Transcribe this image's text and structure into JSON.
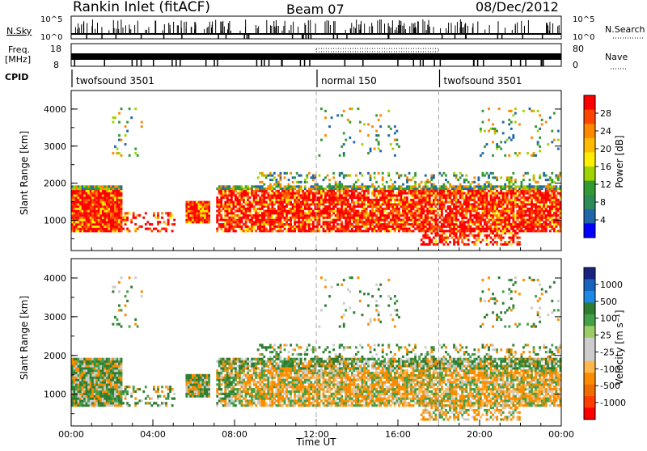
{
  "header": {
    "station": "Rankin Inlet (fitACF)",
    "beam": "Beam 07",
    "date": "08/Dec/2012"
  },
  "strip": {
    "nsky_label": "N.Sky",
    "nsky_ticks": [
      "10^5",
      "10^0"
    ],
    "nsky_ticks_right": [
      "10^5",
      "10^0"
    ],
    "nsearch_label": "N.Search",
    "freq_label": "Freq.",
    "freq_unit": "[MHz]",
    "freq_ticks": [
      "18",
      "8"
    ],
    "nave_ticks": [
      "80",
      "0"
    ],
    "nave_label": "Nave",
    "cpid_label": "CPID",
    "cpid_segments": [
      {
        "label": "twofsound 3501",
        "start_hour": 0,
        "end_hour": 12
      },
      {
        "label": "normal 150",
        "start_hour": 12,
        "end_hour": 18
      },
      {
        "label": "twofsound 3501",
        "start_hour": 18,
        "end_hour": 24
      }
    ]
  },
  "chart_data": [
    {
      "type": "heatmap",
      "ylabel": "Slant Range [km]",
      "ylim": [
        180,
        4500
      ],
      "yticks": [
        "1000",
        "2000",
        "3000",
        "4000"
      ],
      "xlim": [
        0,
        24
      ],
      "colorbar_label": "Power [dB]",
      "colorbar_ticks": [
        "28",
        "24",
        "20",
        "16",
        "12",
        "8",
        "4"
      ],
      "colorbar_colors": [
        "#ff0000",
        "#ff4400",
        "#ff8800",
        "#ffbb00",
        "#ffee00",
        "#9fd400",
        "#339933",
        "#2e8b57",
        "#2266aa",
        "#0000ff"
      ],
      "grid": false
    },
    {
      "type": "heatmap",
      "ylabel": "Slant Range [km]",
      "ylim": [
        180,
        4500
      ],
      "yticks": [
        "1000",
        "2000",
        "3000",
        "4000"
      ],
      "xlim": [
        0,
        24
      ],
      "xlabel": "Time UT",
      "xticks": [
        "00:00",
        "04:00",
        "08:00",
        "12:00",
        "16:00",
        "20:00",
        "00:00"
      ],
      "colorbar_label": "Velocity [m s-1]",
      "colorbar_label_unit": "[m s",
      "colorbar_label_exp": "-1",
      "colorbar_label_close": "]",
      "colorbar_ticks": [
        "1000",
        "500",
        "100",
        "25",
        "-25",
        "-100",
        "-500",
        "-1000"
      ],
      "colorbar_colors": [
        "#1a237e",
        "#1565c0",
        "#1e88e5",
        "#2e7d32",
        "#43a047",
        "#9ccc65",
        "#cccccc",
        "#cccccc",
        "#ffb74d",
        "#fb8c00",
        "#ef6c00",
        "#ff3d00",
        "#ff0000"
      ],
      "grid": false
    }
  ]
}
